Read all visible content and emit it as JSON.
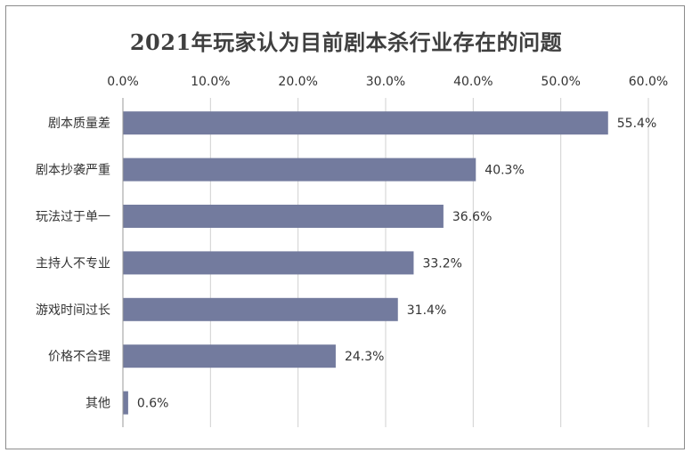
{
  "chart_data": {
    "type": "bar",
    "orientation": "horizontal",
    "title": "2021年玩家认为目前剧本杀行业存在的问题",
    "categories": [
      "剧本质量差",
      "剧本抄袭严重",
      "玩法过于单一",
      "主持人不专业",
      "游戏时间过长",
      "价格不合理",
      "其他"
    ],
    "values": [
      55.4,
      40.3,
      36.6,
      33.2,
      31.4,
      24.3,
      0.6
    ],
    "value_labels": [
      "55.4%",
      "40.3%",
      "36.6%",
      "33.2%",
      "31.4%",
      "24.3%",
      "0.6%"
    ],
    "xaxis_position": "top",
    "xlim": [
      0,
      60
    ],
    "xticks": [
      0,
      10,
      20,
      30,
      40,
      50,
      60
    ],
    "xtick_labels": [
      "0.0%",
      "10.0%",
      "20.0%",
      "30.0%",
      "40.0%",
      "50.0%",
      "60.0%"
    ],
    "grid": true,
    "legend": "none",
    "colors": {
      "bar": "#737b9e",
      "grid": "#d0d0d0",
      "axis": "#9a9a9a",
      "text": "#333333"
    }
  }
}
